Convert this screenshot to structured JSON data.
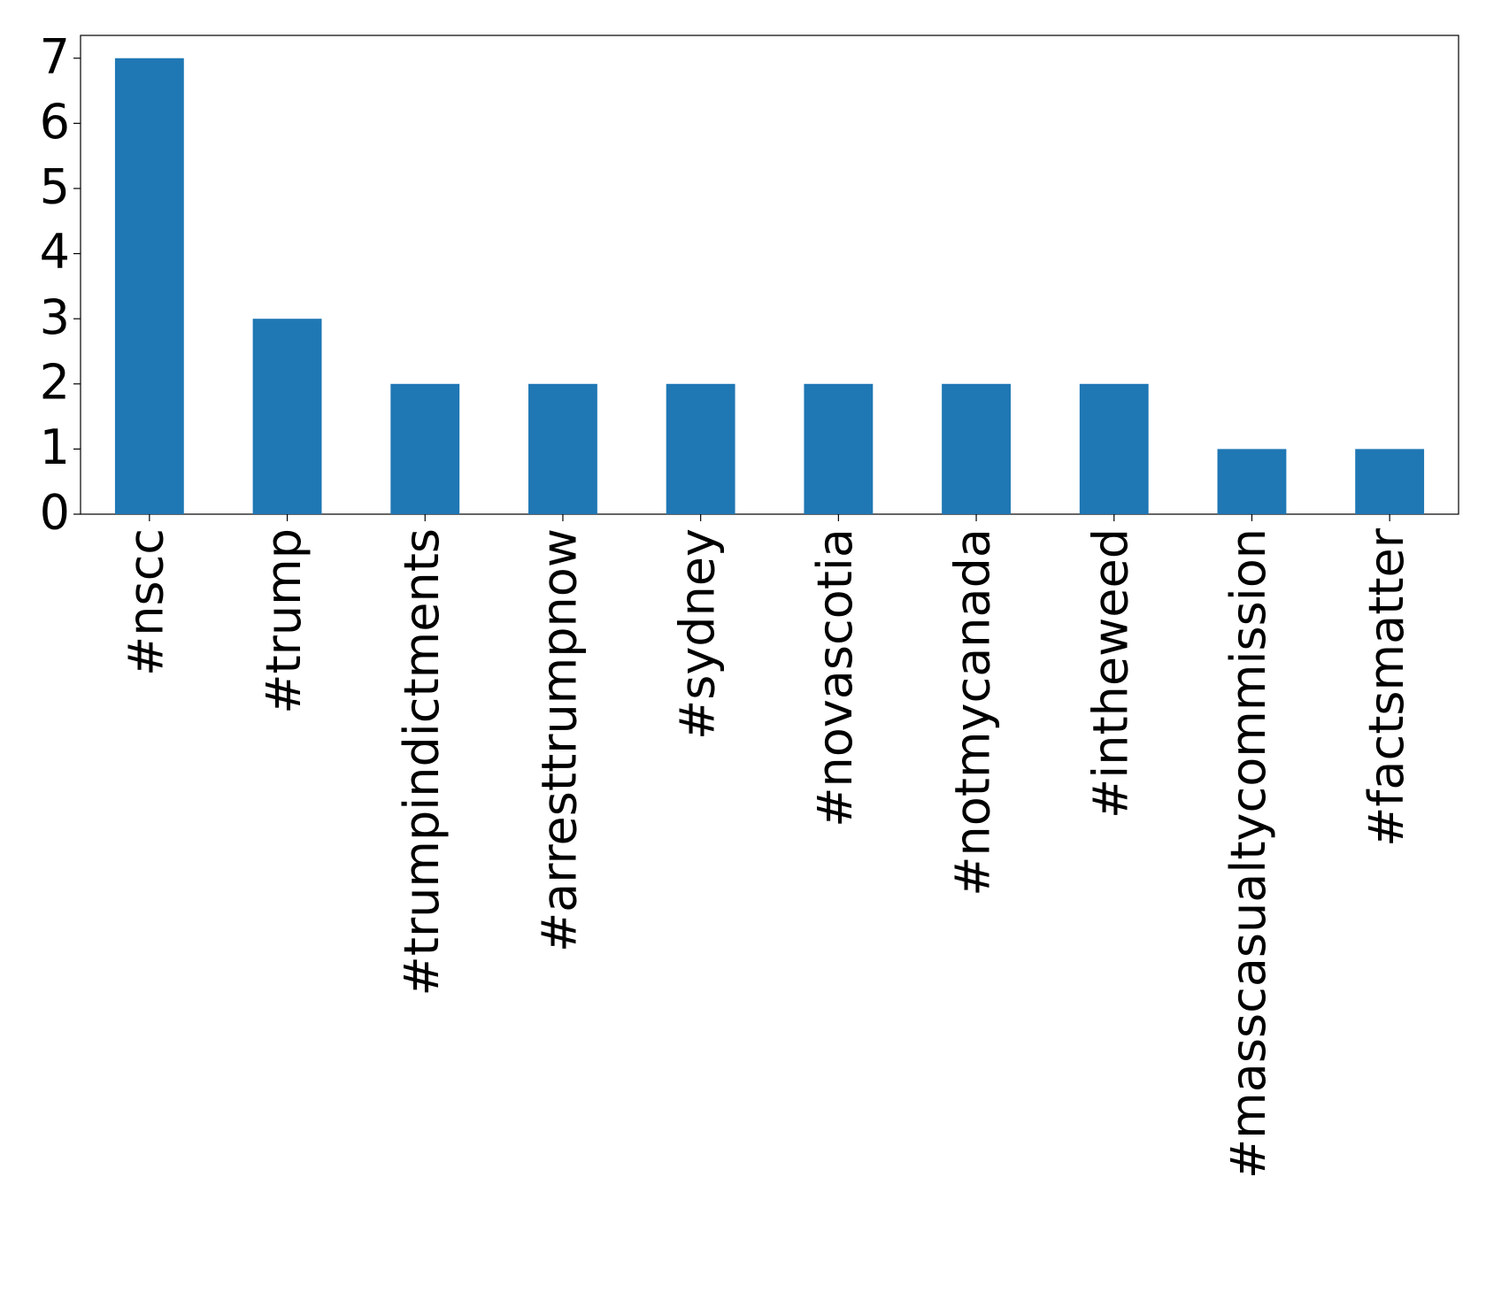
{
  "chart_data": {
    "type": "bar",
    "categories": [
      "#nscc",
      "#trump",
      "#trumpindictments",
      "#arresttrumpnow",
      "#sydney",
      "#novascotia",
      "#notmycanada",
      "#intheweed",
      "#masscasualtycommission",
      "#factsmatter"
    ],
    "values": [
      7,
      3,
      2,
      2,
      2,
      2,
      2,
      2,
      1,
      1
    ],
    "color": "#1f77b4",
    "ylim": [
      0,
      7.35
    ],
    "yticks": [
      0,
      1,
      2,
      3,
      4,
      5,
      6,
      7
    ],
    "grid": false
  }
}
